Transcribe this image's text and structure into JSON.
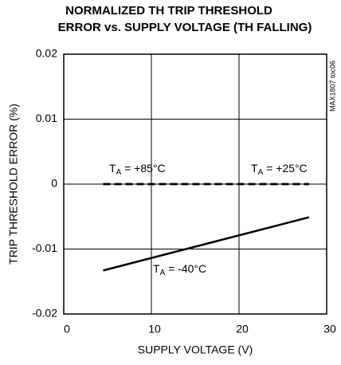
{
  "chart_data": {
    "type": "line",
    "title": [
      "NORMALIZED TH TRIP THRESHOLD",
      "ERROR vs. SUPPLY VOLTAGE (TH FALLING)"
    ],
    "xlabel": "SUPPLY VOLTAGE (V)",
    "ylabel": "TRIP THRESHOLD ERROR (%)",
    "note": "MAX1807 toc06",
    "xlim": [
      0,
      30
    ],
    "xticks": [
      0,
      10,
      20,
      30
    ],
    "ylim": [
      -0.02,
      0.02
    ],
    "yticks": [
      0.02,
      0.01,
      0,
      -0.01,
      -0.02
    ],
    "grid": true,
    "x": [
      4.5,
      28
    ],
    "series": [
      {
        "label": {
          "base": "T",
          "sub": "A",
          "text": " = +85°C"
        },
        "color": "#000000",
        "dash": true,
        "values": [
          0,
          0
        ]
      },
      {
        "label": {
          "base": "T",
          "sub": "A",
          "text": " = +25°C"
        },
        "color": "#000000",
        "dash": true,
        "values": [
          0,
          0
        ]
      },
      {
        "label": {
          "base": "T",
          "sub": "A",
          "text": " = -40°C"
        },
        "color": "#000000",
        "dash": false,
        "values": [
          -0.0133,
          -0.0051
        ]
      }
    ]
  }
}
